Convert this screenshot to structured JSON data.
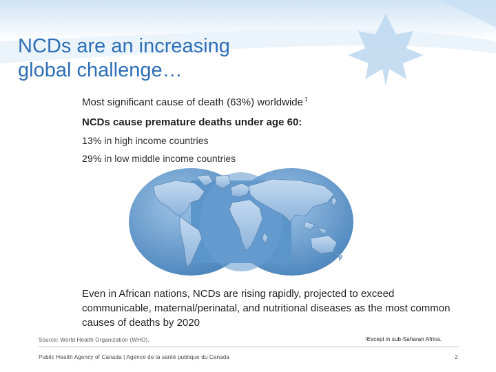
{
  "slide": {
    "title_line1": "NCDs are an increasing",
    "title_line2": "global challenge…",
    "bullets": {
      "b1_text": "Most significant cause of death (63%) worldwide",
      "b1_sup": "1",
      "b2_text": "NCDs cause premature deaths under age 60:",
      "b3_pct": "13%",
      "b3_text": " in high income countries",
      "b4_pct": "29%",
      "b4_text": " in low middle income countries"
    },
    "paragraph": "Even in African nations, NCDs are rising rapidly, projected to exceed communicable, maternal/perinatal, and nutritional diseases as the most common causes of deaths by 2020",
    "source": "Source: World Health Organization (WHO).",
    "footnote": "¹Except in sub-Saharan Africa.",
    "footer_agency": "Public Health Agency of Canada  |  Agence de la santé publique du Canada",
    "page_number": "2"
  },
  "colors": {
    "title": "#2e6fb6",
    "header_band": "#d7e8f7",
    "globe_ocean": "#5b95c9",
    "land": "#a9c7e6"
  },
  "icons": {
    "header_decoration": "maple-leaf-icon",
    "illustration": "world-map-globe-icon"
  }
}
